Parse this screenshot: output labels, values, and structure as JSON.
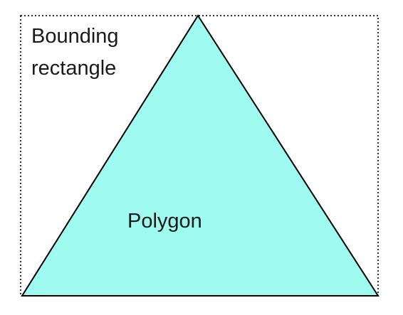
{
  "labels": {
    "bounding_line1": "Bounding",
    "bounding_line2": "rectangle",
    "polygon": "Polygon"
  },
  "colors": {
    "polygon_fill": "#9ffbf0",
    "polygon_stroke": "#000000",
    "bounding_stroke": "#333333",
    "text": "#1a1a1a",
    "background": "#ffffff"
  }
}
